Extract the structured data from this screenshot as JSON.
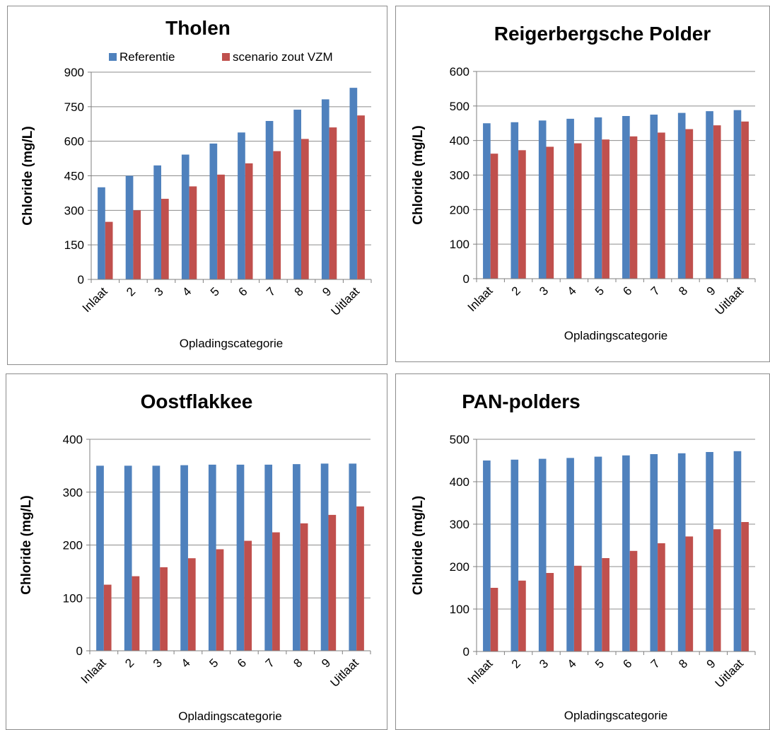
{
  "colors": {
    "referentie": "#4f81bd",
    "scenario": "#c0504d",
    "grid": "#8c8c8c",
    "axis": "#7f7f7f"
  },
  "chart_data": [
    {
      "type": "bar",
      "title": "Tholen",
      "xlabel": "Opladingscategorie",
      "ylabel": "Chloride (mg/L)",
      "categories": [
        "Inlaat",
        "2",
        "3",
        "4",
        "5",
        "6",
        "7",
        "8",
        "9",
        "Uitlaat"
      ],
      "ylim": [
        0,
        900
      ],
      "yticks": [
        0,
        150,
        300,
        450,
        600,
        750,
        900
      ],
      "grid": true,
      "legend": {
        "position": "top",
        "entries": [
          "Referentie",
          "scenario zout VZM"
        ]
      },
      "series": [
        {
          "name": "Referentie",
          "values": [
            400,
            450,
            495,
            542,
            590,
            638,
            688,
            737,
            782,
            832
          ]
        },
        {
          "name": "scenario zout VZM",
          "values": [
            250,
            300,
            350,
            404,
            455,
            504,
            557,
            610,
            660,
            712
          ]
        }
      ]
    },
    {
      "type": "bar",
      "title": "Reigerbergsche Polder",
      "xlabel": "Opladingscategorie",
      "ylabel": "Chloride (mg/L)",
      "categories": [
        "Inlaat",
        "2",
        "3",
        "4",
        "5",
        "6",
        "7",
        "8",
        "9",
        "Uitlaat"
      ],
      "ylim": [
        0,
        600
      ],
      "yticks": [
        0,
        100,
        200,
        300,
        400,
        500,
        600
      ],
      "grid": true,
      "series": [
        {
          "name": "Referentie",
          "values": [
            450,
            453,
            458,
            463,
            467,
            471,
            475,
            480,
            485,
            488
          ]
        },
        {
          "name": "scenario zout VZM",
          "values": [
            362,
            372,
            382,
            392,
            403,
            412,
            423,
            433,
            444,
            455
          ]
        }
      ]
    },
    {
      "type": "bar",
      "title": "Oostflakkee",
      "xlabel": "Opladingscategorie",
      "ylabel": "Chloride (mg/L)",
      "categories": [
        "Inlaat",
        "2",
        "3",
        "4",
        "5",
        "6",
        "7",
        "8",
        "9",
        "Uitlaat"
      ],
      "ylim": [
        0,
        400
      ],
      "yticks": [
        0,
        100,
        200,
        300,
        400
      ],
      "grid": true,
      "series": [
        {
          "name": "Referentie",
          "values": [
            350,
            350,
            350,
            351,
            352,
            352,
            352,
            353,
            354,
            354
          ]
        },
        {
          "name": "scenario zout VZM",
          "values": [
            125,
            141,
            158,
            175,
            192,
            208,
            224,
            241,
            257,
            273
          ]
        }
      ]
    },
    {
      "type": "bar",
      "title": "PAN-polders",
      "xlabel": "Opladingscategorie",
      "ylabel": "Chloride (mg/L)",
      "categories": [
        "Inlaat",
        "2",
        "3",
        "4",
        "5",
        "6",
        "7",
        "8",
        "9",
        "Uitlaat"
      ],
      "ylim": [
        0,
        500
      ],
      "yticks": [
        0,
        100,
        200,
        300,
        400,
        500
      ],
      "grid": true,
      "series": [
        {
          "name": "Referentie",
          "values": [
            450,
            452,
            454,
            456,
            459,
            462,
            465,
            467,
            470,
            472
          ]
        },
        {
          "name": "scenario zout VZM",
          "values": [
            150,
            167,
            185,
            202,
            220,
            237,
            255,
            271,
            288,
            305
          ]
        }
      ]
    }
  ]
}
